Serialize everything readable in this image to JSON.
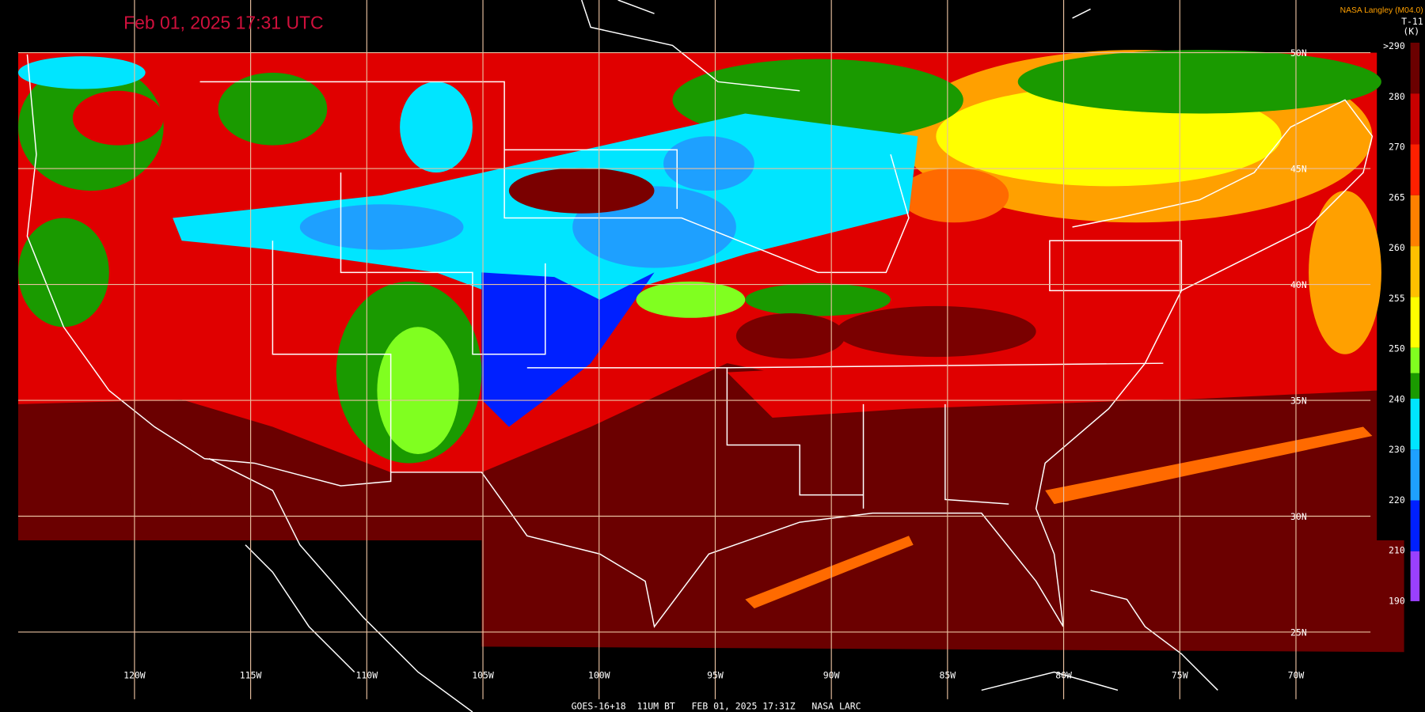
{
  "header": {
    "title": "Feb 01, 2025 17:31 UTC",
    "source": "NASA Langley (M04.0)"
  },
  "colorbar": {
    "title": "T-11",
    "unit": "(K)",
    "ticks": [
      {
        "value": 290,
        "label": ">290"
      },
      280,
      270,
      265,
      260,
      255,
      250,
      240,
      230,
      220,
      210,
      190
    ]
  },
  "map": {
    "longitude_labels": [
      "120W",
      "115W",
      "110W",
      "105W",
      "100W",
      "95W",
      "90W",
      "85W",
      "80W",
      "75W",
      "70W"
    ],
    "latitude_labels": [
      "50N",
      "45N",
      "40N",
      "35N",
      "30N",
      "25N"
    ]
  },
  "footer": "GOES-16+18  11UM BT   FEB 01, 2025 17:31Z   NASA LARC"
}
